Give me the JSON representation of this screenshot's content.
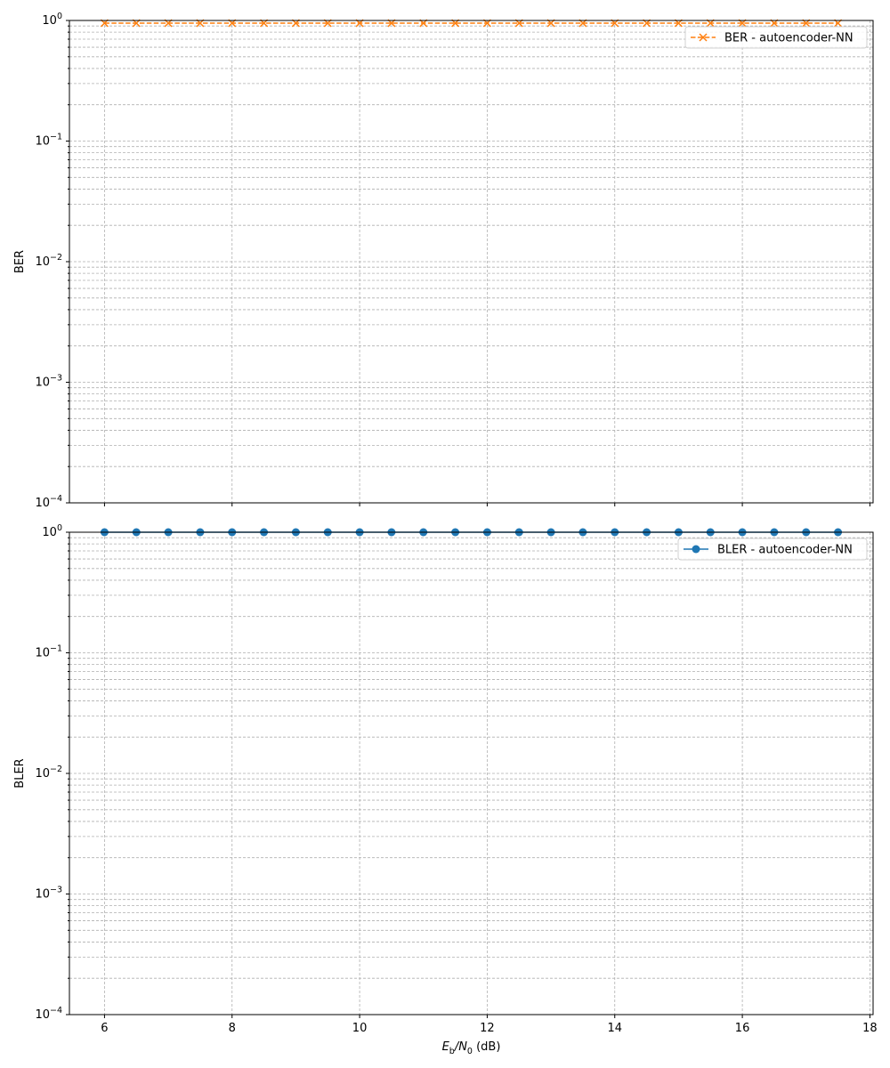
{
  "chart_data": [
    {
      "type": "line",
      "title": "",
      "xlabel": "",
      "ylabel": "BER",
      "yscale": "log",
      "ylim": [
        0.0001,
        1
      ],
      "xlim": [
        5.45,
        18.05
      ],
      "xticks": [
        6,
        8,
        10,
        12,
        14,
        16,
        18
      ],
      "show_x_tick_labels": false,
      "grid": true,
      "grid_which": "both",
      "legend_placement": "top-right",
      "series": [
        {
          "name": "BER - autoencoder-NN",
          "color": "#ff7f0e",
          "marker": "x",
          "linestyle": "dashed",
          "x": [
            6,
            6.5,
            7,
            7.5,
            8,
            8.5,
            9,
            9.5,
            10,
            10.5,
            11,
            11.5,
            12,
            12.5,
            13,
            13.5,
            14,
            14.5,
            15,
            15.5,
            16,
            16.5,
            17,
            17.5
          ],
          "y": [
            0.95,
            0.95,
            0.95,
            0.95,
            0.95,
            0.95,
            0.95,
            0.95,
            0.95,
            0.95,
            0.95,
            0.95,
            0.95,
            0.95,
            0.95,
            0.95,
            0.95,
            0.95,
            0.95,
            0.95,
            0.95,
            0.95,
            0.95,
            0.95
          ]
        }
      ]
    },
    {
      "type": "line",
      "title": "",
      "xlabel": "E_b/N_0 (dB)",
      "ylabel": "BLER",
      "yscale": "log",
      "ylim": [
        0.0001,
        1
      ],
      "xlim": [
        5.45,
        18.05
      ],
      "xticks": [
        6,
        8,
        10,
        12,
        14,
        16,
        18
      ],
      "show_x_tick_labels": true,
      "grid": true,
      "grid_which": "both",
      "legend_placement": "top-right",
      "series": [
        {
          "name": "BLER - autoencoder-NN",
          "color": "#1f77b4",
          "marker": "o",
          "linestyle": "solid",
          "x": [
            6,
            6.5,
            7,
            7.5,
            8,
            8.5,
            9,
            9.5,
            10,
            10.5,
            11,
            11.5,
            12,
            12.5,
            13,
            13.5,
            14,
            14.5,
            15,
            15.5,
            16,
            16.5,
            17,
            17.5
          ],
          "y": [
            1,
            1,
            1,
            1,
            1,
            1,
            1,
            1,
            1,
            1,
            1,
            1,
            1,
            1,
            1,
            1,
            1,
            1,
            1,
            1,
            1,
            1,
            1,
            1
          ]
        }
      ]
    }
  ]
}
